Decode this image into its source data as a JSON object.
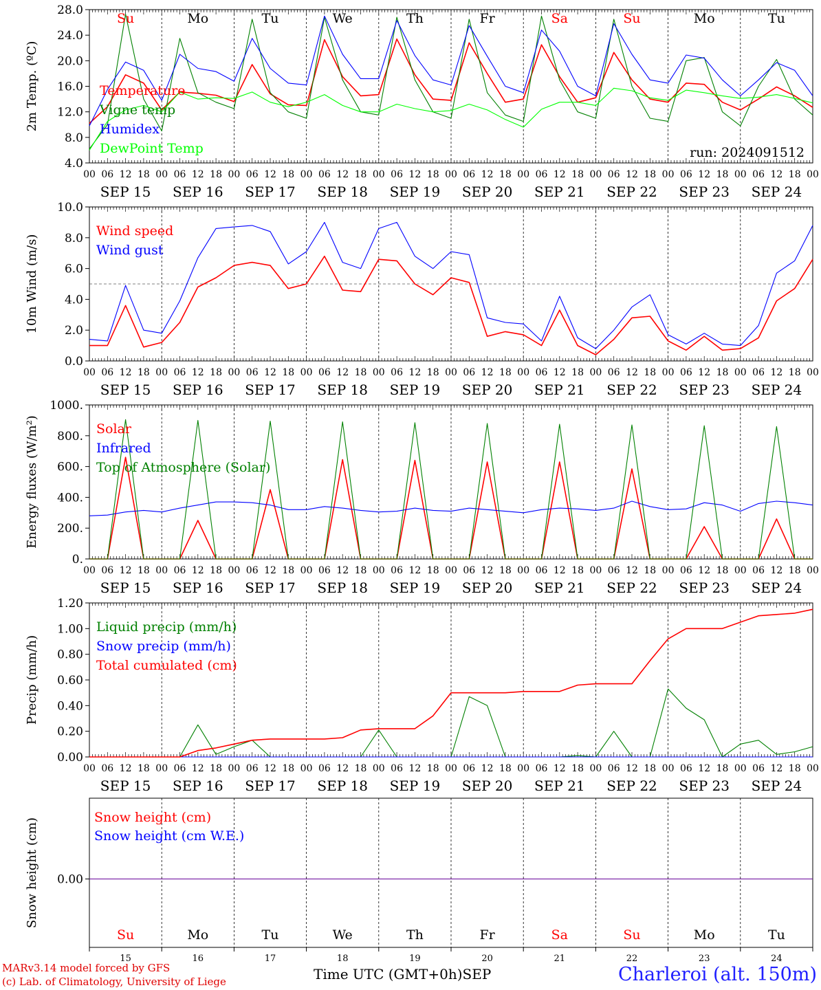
{
  "chart_data": [
    {
      "type": "line",
      "ylabel": "2m Temp. (ºC)",
      "ylim": [
        4,
        28
      ],
      "yticks": [
        "4.0",
        "8.0",
        "12.0",
        "16.0",
        "20.0",
        "24.0",
        "28.0"
      ],
      "x_hours": [
        0,
        6,
        12,
        18,
        24,
        30,
        36,
        42,
        48,
        54,
        60,
        66,
        72,
        78,
        84,
        90,
        96,
        102,
        108,
        114,
        120,
        126,
        132,
        138,
        144,
        150,
        156,
        162,
        168,
        174,
        180,
        186,
        192,
        198,
        204,
        210,
        216,
        222,
        228,
        234,
        240
      ],
      "series": [
        {
          "name": "Temperature",
          "color": "#ff0000",
          "values": [
            10.2,
            12.8,
            17.8,
            16.5,
            12.3,
            15.1,
            14.9,
            14.6,
            13.6,
            19.4,
            14.8,
            13.1,
            13.0,
            23.3,
            17.5,
            14.5,
            14.7,
            23.4,
            17.8,
            14.0,
            13.8,
            22.8,
            18.0,
            13.5,
            14.0,
            22.5,
            17.5,
            13.5,
            14.2,
            21.3,
            17.0,
            14.0,
            13.5,
            16.5,
            16.3,
            13.5,
            12.3,
            14.0,
            15.9,
            14.5,
            12.7
          ]
        },
        {
          "name": "Vigne temp",
          "color": "#008000",
          "values": [
            6.2,
            10.0,
            27.3,
            14.0,
            9.0,
            23.5,
            15.0,
            13.5,
            12.5,
            26.5,
            15.0,
            12.0,
            11.0,
            26.8,
            17.0,
            12.0,
            11.5,
            26.8,
            17.0,
            12.0,
            11.0,
            26.5,
            15.0,
            11.5,
            10.5,
            27.0,
            17.0,
            12.0,
            11.0,
            26.5,
            16.0,
            11.0,
            10.5,
            20.0,
            20.5,
            12.0,
            9.8,
            16.0,
            20.2,
            14.0,
            11.5
          ]
        },
        {
          "name": "Humidex",
          "color": "#0000ff",
          "values": [
            9.8,
            15.5,
            19.8,
            18.5,
            13.8,
            21.0,
            18.8,
            18.3,
            16.8,
            23.5,
            18.8,
            16.5,
            16.2,
            27.0,
            21.0,
            17.2,
            17.2,
            26.3,
            20.8,
            17.0,
            16.2,
            25.5,
            20.7,
            16.0,
            15.0,
            24.8,
            21.5,
            16.0,
            14.5,
            25.8,
            21.0,
            17.0,
            16.5,
            20.9,
            20.4,
            17.0,
            14.5,
            17.0,
            19.7,
            18.5,
            14.5
          ]
        },
        {
          "name": "DewPoint Temp",
          "color": "#00ff00",
          "values": [
            6.0,
            10.5,
            12.3,
            13.0,
            12.0,
            15.1,
            14.0,
            14.2,
            14.1,
            15.1,
            13.5,
            12.8,
            13.5,
            14.7,
            13.0,
            12.0,
            12.0,
            13.2,
            12.5,
            12.0,
            12.2,
            13.2,
            12.3,
            10.8,
            9.6,
            12.4,
            13.5,
            13.5,
            13.0,
            15.7,
            15.3,
            14.2,
            13.8,
            15.4,
            15.0,
            14.5,
            14.1,
            14.3,
            14.7,
            14.1,
            13.4
          ]
        }
      ],
      "annotation": "run: 2024091512"
    },
    {
      "type": "line",
      "ylabel": "10m Wind (m/s)",
      "ylim": [
        0,
        10
      ],
      "yticks": [
        "0.0",
        "2.0",
        "4.0",
        "6.0",
        "8.0",
        "10.0"
      ],
      "reference_line": 5,
      "x_hours": [
        0,
        6,
        12,
        18,
        24,
        30,
        36,
        42,
        48,
        54,
        60,
        66,
        72,
        78,
        84,
        90,
        96,
        102,
        108,
        114,
        120,
        126,
        132,
        138,
        144,
        150,
        156,
        162,
        168,
        174,
        180,
        186,
        192,
        198,
        204,
        210,
        216,
        222,
        228,
        234,
        240
      ],
      "series": [
        {
          "name": "Wind speed",
          "color": "#ff0000",
          "values": [
            1.0,
            1.0,
            3.6,
            0.9,
            1.2,
            2.5,
            4.8,
            5.4,
            6.2,
            6.4,
            6.2,
            4.7,
            5.0,
            6.8,
            4.6,
            4.5,
            6.6,
            6.5,
            5.0,
            4.3,
            5.4,
            5.1,
            1.6,
            1.9,
            1.7,
            1.0,
            3.3,
            1.0,
            0.4,
            1.4,
            2.8,
            2.9,
            1.3,
            0.7,
            1.6,
            0.7,
            0.8,
            1.5,
            3.9,
            4.7,
            6.6
          ]
        },
        {
          "name": "Wind gust",
          "color": "#0000ff",
          "values": [
            1.4,
            1.3,
            4.9,
            2.0,
            1.8,
            3.9,
            6.7,
            8.6,
            8.7,
            8.8,
            8.4,
            6.3,
            7.1,
            9.0,
            6.4,
            6.0,
            8.6,
            9.0,
            6.8,
            6.0,
            7.1,
            6.9,
            2.8,
            2.5,
            2.4,
            1.3,
            4.2,
            1.5,
            0.8,
            2.0,
            3.5,
            4.3,
            1.7,
            1.1,
            1.8,
            1.1,
            1.0,
            2.3,
            5.7,
            6.5,
            8.8
          ]
        }
      ]
    },
    {
      "type": "line",
      "ylabel": "Energy fluxes (W/m²)",
      "ylim": [
        0,
        1000
      ],
      "yticks": [
        "0.",
        "200.",
        "400.",
        "600.",
        "800.",
        "1000."
      ],
      "x_hours": [
        0,
        6,
        12,
        18,
        24,
        30,
        36,
        42,
        48,
        54,
        60,
        66,
        72,
        78,
        84,
        90,
        96,
        102,
        108,
        114,
        120,
        126,
        132,
        138,
        144,
        150,
        156,
        162,
        168,
        174,
        180,
        186,
        192,
        198,
        204,
        210,
        216,
        222,
        228,
        234,
        240
      ],
      "series": [
        {
          "name": "Solar",
          "color": "#ff0000",
          "values": [
            0,
            0,
            660,
            0,
            0,
            0,
            250,
            0,
            0,
            0,
            450,
            0,
            0,
            0,
            645,
            0,
            0,
            0,
            640,
            0,
            0,
            0,
            630,
            0,
            0,
            0,
            630,
            0,
            0,
            0,
            585,
            0,
            0,
            0,
            210,
            0,
            0,
            0,
            260,
            0,
            0
          ]
        },
        {
          "name": "Infrared",
          "color": "#0000ff",
          "values": [
            280,
            285,
            305,
            315,
            305,
            330,
            350,
            370,
            370,
            365,
            350,
            320,
            320,
            340,
            330,
            315,
            305,
            310,
            330,
            315,
            310,
            330,
            320,
            310,
            300,
            320,
            330,
            325,
            315,
            330,
            375,
            340,
            320,
            325,
            365,
            350,
            310,
            360,
            375,
            365,
            350
          ]
        },
        {
          "name": "Top of Atmosphere (Solar)",
          "color": "#008000",
          "values": [
            0,
            0,
            905,
            0,
            0,
            0,
            900,
            0,
            0,
            0,
            895,
            0,
            0,
            0,
            890,
            0,
            0,
            0,
            885,
            0,
            0,
            0,
            880,
            0,
            0,
            0,
            875,
            0,
            0,
            0,
            870,
            0,
            0,
            0,
            865,
            0,
            0,
            0,
            860,
            0,
            0
          ]
        }
      ]
    },
    {
      "type": "line",
      "ylabel": "Precip (mm/h)",
      "ylim": [
        0,
        1.2
      ],
      "yticks": [
        "0.00",
        "0.20",
        "0.40",
        "0.60",
        "0.80",
        "1.00",
        "1.20"
      ],
      "x_hours": [
        0,
        6,
        12,
        18,
        24,
        30,
        36,
        42,
        48,
        54,
        60,
        66,
        72,
        78,
        84,
        90,
        96,
        102,
        108,
        114,
        120,
        126,
        132,
        138,
        144,
        150,
        156,
        162,
        168,
        174,
        180,
        186,
        192,
        198,
        204,
        210,
        216,
        222,
        228,
        234,
        240
      ],
      "series": [
        {
          "name": "Liquid precip (mm/h)",
          "color": "#008000",
          "values": [
            0,
            0,
            0,
            0,
            0,
            0,
            0.25,
            0.02,
            0.08,
            0.13,
            0,
            0,
            0,
            0,
            0,
            0,
            0.21,
            0,
            0,
            0,
            0,
            0.47,
            0.4,
            0,
            0,
            0,
            0,
            0.01,
            0,
            0.2,
            0,
            0,
            0.53,
            0.38,
            0.29,
            0,
            0.1,
            0.13,
            0.02,
            0.04,
            0.08
          ]
        },
        {
          "name": "Snow precip (mm/h)",
          "color": "#0000ff",
          "values": [
            0,
            0,
            0,
            0,
            0,
            0,
            0,
            0,
            0,
            0,
            0,
            0,
            0,
            0,
            0,
            0,
            0,
            0,
            0,
            0,
            0,
            0,
            0,
            0,
            0,
            0,
            0,
            0,
            0,
            0,
            0,
            0,
            0,
            0,
            0,
            0,
            0,
            0,
            0,
            0,
            0
          ]
        },
        {
          "name": "Total cumulated (cm)",
          "color": "#ff0000",
          "values": [
            0,
            0,
            0,
            0,
            0,
            0,
            0.05,
            0.07,
            0.1,
            0.13,
            0.14,
            0.14,
            0.14,
            0.14,
            0.15,
            0.21,
            0.22,
            0.22,
            0.22,
            0.32,
            0.5,
            0.5,
            0.5,
            0.5,
            0.51,
            0.51,
            0.51,
            0.56,
            0.57,
            0.57,
            0.57,
            0.75,
            0.92,
            1.0,
            1.0,
            1.0,
            1.05,
            1.1,
            1.11,
            1.12,
            1.15
          ]
        }
      ]
    },
    {
      "type": "line",
      "ylabel": "Snow height (cm)",
      "yticks": [
        "0.00"
      ],
      "series": [
        {
          "name": "Snow height (cm)",
          "color": "#ff0000",
          "values": [
            0,
            0
          ]
        },
        {
          "name": "Snow height (cm W.E.)",
          "color": "#0000ff",
          "values": [
            0,
            0
          ]
        }
      ]
    }
  ],
  "axis": {
    "hour_ticks": [
      "00",
      "06",
      "12",
      "18"
    ],
    "final_hour_tick": "00",
    "dates": [
      "SEP 15",
      "SEP 16",
      "SEP 17",
      "SEP 18",
      "SEP 19",
      "SEP 20",
      "SEP 21",
      "SEP 22",
      "SEP 23",
      "SEP 24"
    ],
    "weekdays": [
      "Su",
      "Mo",
      "Tu",
      "We",
      "Th",
      "Fr",
      "Sa",
      "Su",
      "Mo",
      "Tu"
    ],
    "weekday_colors": [
      "#ff0000",
      "#000000",
      "#000000",
      "#000000",
      "#000000",
      "#000000",
      "#ff0000",
      "#ff0000",
      "#000000",
      "#000000"
    ],
    "day_numbers": [
      "15",
      "16",
      "17",
      "18",
      "19",
      "20",
      "21",
      "22",
      "23",
      "24"
    ],
    "xlabel": "Time UTC (GMT+0h)",
    "month": "SEP"
  },
  "footer": {
    "model": "MARv3.14 model forced by GFS",
    "credit": "(c) Lab. of Climatology, University of Liege",
    "station": "Charleroi (alt. 150m)"
  }
}
